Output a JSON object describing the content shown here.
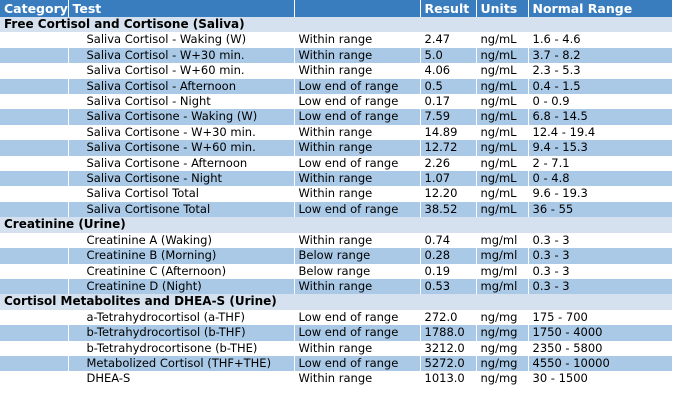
{
  "table": {
    "headers": [
      "Category",
      "Test",
      "Result",
      "Units",
      "Normal Range"
    ],
    "sections": [
      {
        "title": "Free Cortisol and Cortisone (Saliva)",
        "rows": [
          [
            "Saliva Cortisol - Waking (W)",
            "Within range",
            "2.47",
            "ng/mL",
            "1.6 - 4.6"
          ],
          [
            "Saliva Cortisol - W+30 min.",
            "Within range",
            "5.0",
            "ng/mL",
            "3.7 - 8.2"
          ],
          [
            "Saliva Cortisol - W+60 min.",
            "Within range",
            "4.06",
            "ng/mL",
            "2.3 - 5.3"
          ],
          [
            "Saliva Cortisol - Afternoon",
            "Low end of range",
            "0.5",
            "ng/mL",
            "0.4 - 1.5"
          ],
          [
            "Saliva Cortisol - Night",
            "Low end of range",
            "0.17",
            "ng/mL",
            "0 - 0.9"
          ],
          [
            "Saliva Cortisone - Waking (W)",
            "Low end of range",
            "7.59",
            "ng/mL",
            "6.8 - 14.5"
          ],
          [
            "Saliva Cortisone - W+30 min.",
            "Within range",
            "14.89",
            "ng/mL",
            "12.4 - 19.4"
          ],
          [
            "Saliva Cortisone - W+60 min.",
            "Within range",
            "12.72",
            "ng/mL",
            "9.4 - 15.3"
          ],
          [
            "Saliva Cortisone - Afternoon",
            "Low end of range",
            "2.26",
            "ng/mL",
            "2 - 7.1"
          ],
          [
            "Saliva Cortisone - Night",
            "Within range",
            "1.07",
            "ng/mL",
            "0 - 4.8"
          ],
          [
            "Saliva Cortisol Total",
            "Within range",
            "12.20",
            "ng/mL",
            "9.6 - 19.3"
          ],
          [
            "Saliva Cortisone Total",
            "Low end of range",
            "38.52",
            "ng/mL",
            "36 - 55"
          ]
        ]
      },
      {
        "title": "Creatinine (Urine)",
        "rows": [
          [
            "Creatinine A (Waking)",
            "Within range",
            "0.74",
            "mg/ml",
            "0.3 - 3"
          ],
          [
            "Creatinine B (Morning)",
            "Below range",
            "0.28",
            "mg/ml",
            "0.3 - 3"
          ],
          [
            "Creatinine C (Afternoon)",
            "Below range",
            "0.19",
            "mg/ml",
            "0.3 - 3"
          ],
          [
            "Creatinine D (Night)",
            "Within range",
            "0.53",
            "mg/ml",
            "0.3 - 3"
          ]
        ]
      },
      {
        "title": "Cortisol Metabolites and DHEA-S (Urine)",
        "rows": [
          [
            "a-Tetrahydrocortisol (a-THF)",
            "Low end of range",
            "272.0",
            "ng/mg",
            "175 - 700"
          ],
          [
            "b-Tetrahydrocortisol (b-THF)",
            "Low end of range",
            "1788.0",
            "ng/mg",
            "1750 - 4000"
          ],
          [
            "b-Tetrahydrocortisone (b-THE)",
            "Within range",
            "3212.0",
            "ng/mg",
            "2350 - 5800"
          ],
          [
            "Metabolized Cortisol (THF+THE)",
            "Low end of range",
            "5272.0",
            "ng/mg",
            "4550 - 10000"
          ],
          [
            "DHEA-S",
            "Within range",
            "1013.0",
            "ng/mg",
            "30 - 1500"
          ]
        ]
      }
    ]
  }
}
